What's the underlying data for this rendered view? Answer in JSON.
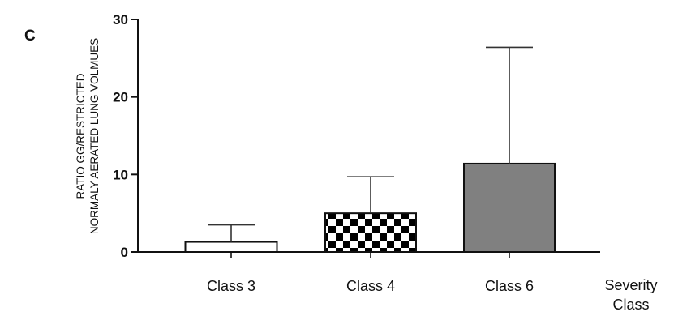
{
  "panel_label": "C",
  "chart_data": {
    "type": "bar",
    "categories": [
      "Class 3",
      "Class 4",
      "Class 6"
    ],
    "values": [
      1.3,
      5.0,
      11.4
    ],
    "error_upper": [
      3.5,
      9.7,
      26.4
    ],
    "fills": [
      "white",
      "checkerboard",
      "#808080"
    ],
    "ylabel_line1": "RATIO GG/RESTRICTED",
    "ylabel_line2": "NORMALY AERATED LUNG VOLMUES",
    "xlabel_line1": "Severity",
    "xlabel_line2": "Class",
    "ylim": [
      0,
      30
    ],
    "yticks": [
      "0",
      "10",
      "20",
      "30"
    ],
    "grid": false
  }
}
